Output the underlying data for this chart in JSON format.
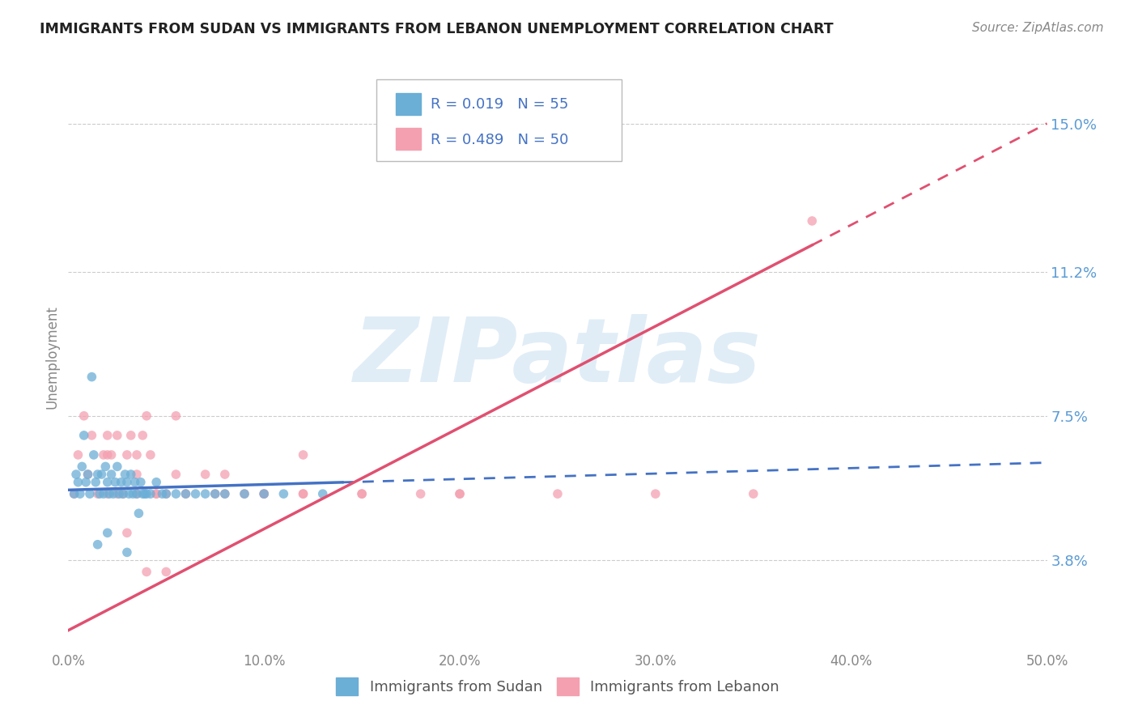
{
  "title": "IMMIGRANTS FROM SUDAN VS IMMIGRANTS FROM LEBANON UNEMPLOYMENT CORRELATION CHART",
  "source": "Source: ZipAtlas.com",
  "ylabel": "Unemployment",
  "xlim": [
    0.0,
    50.0
  ],
  "ylim": [
    1.5,
    16.5
  ],
  "yticks": [
    3.8,
    7.5,
    11.2,
    15.0
  ],
  "ytick_labels": [
    "3.8%",
    "7.5%",
    "11.2%",
    "15.0%"
  ],
  "xticks": [
    0.0,
    10.0,
    20.0,
    30.0,
    40.0,
    50.0
  ],
  "xtick_labels": [
    "0.0%",
    "10.0%",
    "20.0%",
    "30.0%",
    "40.0%",
    "50.0%"
  ],
  "sudan_color": "#6baed6",
  "lebanon_color": "#f4a0b0",
  "R_sudan": 0.019,
  "N_sudan": 55,
  "R_lebanon": 0.489,
  "N_lebanon": 50,
  "sudan_line_x0": 0.0,
  "sudan_line_y0": 5.6,
  "sudan_line_x1": 50.0,
  "sudan_line_y1": 6.3,
  "sudan_solid_end": 14.0,
  "lebanon_line_x0": 0.0,
  "lebanon_line_y0": 2.0,
  "lebanon_line_x1": 50.0,
  "lebanon_line_y1": 15.0,
  "lebanon_solid_end": 38.0,
  "sudan_scatter_x": [
    0.3,
    0.4,
    0.5,
    0.6,
    0.7,
    0.8,
    0.9,
    1.0,
    1.1,
    1.2,
    1.3,
    1.4,
    1.5,
    1.6,
    1.7,
    1.8,
    1.9,
    2.0,
    2.1,
    2.2,
    2.3,
    2.4,
    2.5,
    2.6,
    2.7,
    2.8,
    2.9,
    3.0,
    3.1,
    3.2,
    3.3,
    3.4,
    3.5,
    3.6,
    3.7,
    3.8,
    3.9,
    4.0,
    4.2,
    4.5,
    4.8,
    5.0,
    5.5,
    6.0,
    6.5,
    7.0,
    7.5,
    8.0,
    9.0,
    10.0,
    11.0,
    13.0,
    2.0,
    1.5,
    3.0
  ],
  "sudan_scatter_y": [
    5.5,
    6.0,
    5.8,
    5.5,
    6.2,
    7.0,
    5.8,
    6.0,
    5.5,
    8.5,
    6.5,
    5.8,
    6.0,
    5.5,
    6.0,
    5.5,
    6.2,
    5.8,
    5.5,
    6.0,
    5.5,
    5.8,
    6.2,
    5.5,
    5.8,
    5.5,
    6.0,
    5.8,
    5.5,
    6.0,
    5.5,
    5.8,
    5.5,
    5.0,
    5.8,
    5.5,
    5.5,
    5.5,
    5.5,
    5.8,
    5.5,
    5.5,
    5.5,
    5.5,
    5.5,
    5.5,
    5.5,
    5.5,
    5.5,
    5.5,
    5.5,
    5.5,
    4.5,
    4.2,
    4.0
  ],
  "lebanon_scatter_x": [
    0.3,
    0.5,
    0.8,
    1.0,
    1.2,
    1.5,
    1.8,
    2.0,
    2.2,
    2.5,
    2.8,
    3.0,
    3.2,
    3.5,
    3.8,
    4.0,
    4.2,
    4.5,
    5.0,
    5.5,
    6.0,
    7.0,
    8.0,
    9.0,
    10.0,
    12.0,
    15.0,
    18.0,
    20.0,
    25.0,
    30.0,
    35.0,
    38.0,
    2.0,
    3.0,
    4.0,
    5.0,
    2.5,
    3.5,
    4.5,
    7.5,
    10.0,
    12.0,
    15.0,
    20.0,
    2.0,
    3.5,
    5.5,
    8.0,
    12.0
  ],
  "lebanon_scatter_y": [
    5.5,
    6.5,
    7.5,
    6.0,
    7.0,
    5.5,
    6.5,
    7.0,
    6.5,
    7.0,
    5.5,
    6.5,
    7.0,
    6.0,
    7.0,
    7.5,
    6.5,
    5.5,
    5.5,
    6.0,
    5.5,
    6.0,
    5.5,
    5.5,
    5.5,
    5.5,
    5.5,
    5.5,
    5.5,
    5.5,
    5.5,
    5.5,
    12.5,
    5.5,
    4.5,
    3.5,
    3.5,
    5.5,
    5.5,
    5.5,
    5.5,
    5.5,
    5.5,
    5.5,
    5.5,
    6.5,
    6.5,
    7.5,
    6.0,
    6.5
  ],
  "watermark_text": "ZIPatlas",
  "grid_color": "#cccccc",
  "bg_color": "#ffffff",
  "title_color": "#222222",
  "axis_label_color": "#888888",
  "tick_color_y": "#5b9bd5",
  "tick_color_x": "#888888",
  "source_color": "#888888",
  "legend_sudan_line_color": "#4472c4",
  "legend_lebanon_line_color": "#e05070",
  "bottom_legend_label1": "Immigrants from Sudan",
  "bottom_legend_label2": "Immigrants from Lebanon"
}
